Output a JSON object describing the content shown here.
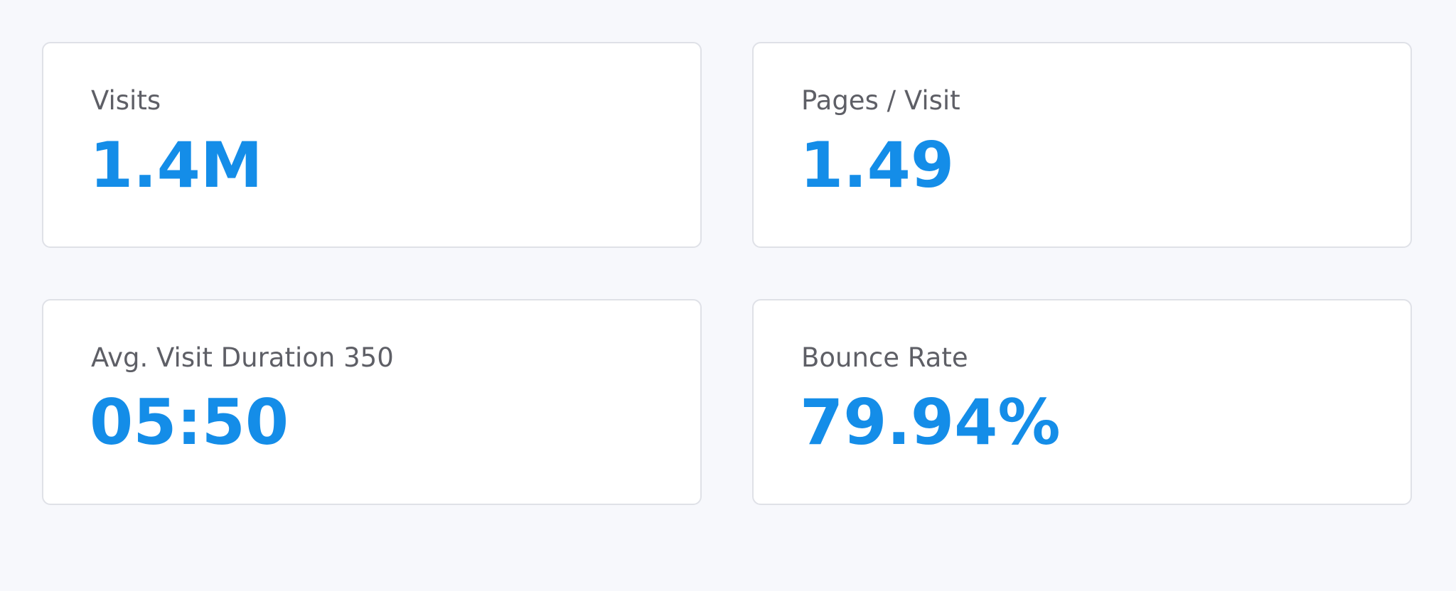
{
  "cards": [
    {
      "label": "Visits",
      "value": "1.4M"
    },
    {
      "label": "Pages / Visit",
      "value": "1.49"
    },
    {
      "label": "Avg. Visit Duration 350",
      "value": "05:50"
    },
    {
      "label": "Bounce Rate",
      "value": "79.94%"
    }
  ]
}
